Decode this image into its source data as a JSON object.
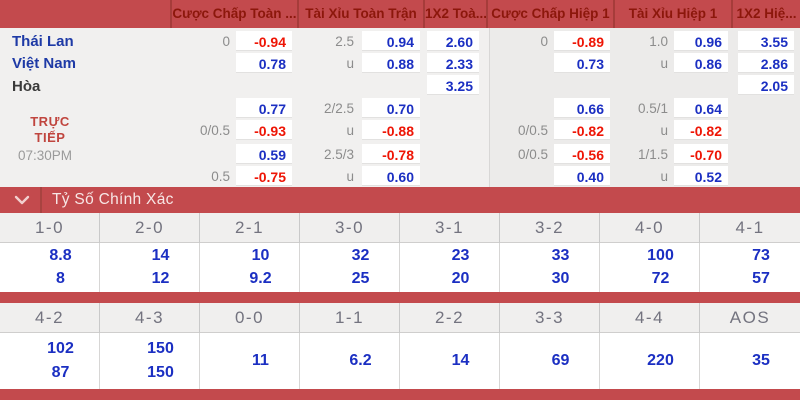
{
  "colors": {
    "bar_red": "#c34a4d",
    "bar_divider_red": "#a63c3a",
    "header_text_red": "#8c170b",
    "odds_blue": "#1b2fc2",
    "odds_red": "#ee1505",
    "line_gray": "#8c8c8c",
    "team_blue": "#1e3aa6",
    "live_red": "#c0453e"
  },
  "top_header": {
    "markets": [
      "Cược Chấp Toàn ...",
      "Tài Xỉu Toàn Trận",
      "1X2 Toà...",
      "Cược Chấp Hiệp 1",
      "Tài Xỉu Hiệp 1",
      "1X2 Hiệ..."
    ]
  },
  "match_info": {
    "home_team": "Thái Lan",
    "away_team": "Việt Nam",
    "draw_label": "Hòa",
    "live_line1": "TRỰC",
    "live_line2": "TIẾP",
    "time": "07:30PM"
  },
  "odds_rows": [
    [
      {
        "line": "0",
        "value": "-0.94",
        "tone": "red"
      },
      {
        "line": "2.5",
        "value": "0.94",
        "tone": "blue"
      },
      {
        "value": "2.60",
        "tone": "blue"
      },
      {
        "line": "0",
        "value": "-0.89",
        "tone": "red"
      },
      {
        "line": "1.0",
        "value": "0.96",
        "tone": "blue"
      },
      {
        "value": "3.55",
        "tone": "blue"
      }
    ],
    [
      {
        "value": "0.78",
        "tone": "blue"
      },
      {
        "line": "u",
        "value": "0.88",
        "tone": "blue"
      },
      {
        "value": "2.33",
        "tone": "blue"
      },
      {
        "value": "0.73",
        "tone": "blue"
      },
      {
        "line": "u",
        "value": "0.86",
        "tone": "blue"
      },
      {
        "value": "2.86",
        "tone": "blue"
      }
    ],
    [
      null,
      null,
      {
        "value": "3.25",
        "tone": "blue"
      },
      null,
      null,
      {
        "value": "2.05",
        "tone": "blue"
      }
    ],
    [
      {
        "value": "0.77",
        "tone": "blue"
      },
      {
        "line": "2/2.5",
        "value": "0.70",
        "tone": "blue"
      },
      null,
      {
        "value": "0.66",
        "tone": "blue"
      },
      {
        "line": "0.5/1",
        "value": "0.64",
        "tone": "blue"
      },
      null
    ],
    [
      {
        "line": "0/0.5",
        "value": "-0.93",
        "tone": "red"
      },
      {
        "line": "u",
        "value": "-0.88",
        "tone": "red"
      },
      null,
      {
        "line": "0/0.5",
        "value": "-0.82",
        "tone": "red"
      },
      {
        "line": "u",
        "value": "-0.82",
        "tone": "red"
      },
      null
    ],
    [
      {
        "value": "0.59",
        "tone": "blue"
      },
      {
        "line": "2.5/3",
        "value": "-0.78",
        "tone": "red"
      },
      null,
      {
        "line": "0/0.5",
        "value": "-0.56",
        "tone": "red"
      },
      {
        "line": "1/1.5",
        "value": "-0.70",
        "tone": "red"
      },
      null
    ],
    [
      {
        "line": "0.5",
        "value": "-0.75",
        "tone": "red"
      },
      {
        "line": "u",
        "value": "0.60",
        "tone": "blue"
      },
      null,
      {
        "value": "0.40",
        "tone": "blue"
      },
      {
        "line": "u",
        "value": "0.52",
        "tone": "blue"
      },
      null
    ]
  ],
  "correct_score": {
    "title": "Tỷ Số Chính Xác",
    "groups": [
      {
        "cells": [
          {
            "score": "1-0",
            "odds": [
              "8.8",
              "8"
            ]
          },
          {
            "score": "2-0",
            "odds": [
              "14",
              "12"
            ]
          },
          {
            "score": "2-1",
            "odds": [
              "10",
              "9.2"
            ]
          },
          {
            "score": "3-0",
            "odds": [
              "32",
              "25"
            ]
          },
          {
            "score": "3-1",
            "odds": [
              "23",
              "20"
            ]
          },
          {
            "score": "3-2",
            "odds": [
              "33",
              "30"
            ]
          },
          {
            "score": "4-0",
            "odds": [
              "100",
              "72"
            ]
          },
          {
            "score": "4-1",
            "odds": [
              "73",
              "57"
            ]
          }
        ]
      },
      {
        "cells": [
          {
            "score": "4-2",
            "odds": [
              "102",
              "87"
            ]
          },
          {
            "score": "4-3",
            "odds": [
              "150",
              "150"
            ]
          },
          {
            "score": "0-0",
            "odds": [
              "11"
            ]
          },
          {
            "score": "1-1",
            "odds": [
              "6.2"
            ]
          },
          {
            "score": "2-2",
            "odds": [
              "14"
            ]
          },
          {
            "score": "3-3",
            "odds": [
              "69"
            ]
          },
          {
            "score": "4-4",
            "odds": [
              "220"
            ]
          },
          {
            "score": "AOS",
            "odds": [
              "35"
            ]
          }
        ]
      }
    ]
  }
}
